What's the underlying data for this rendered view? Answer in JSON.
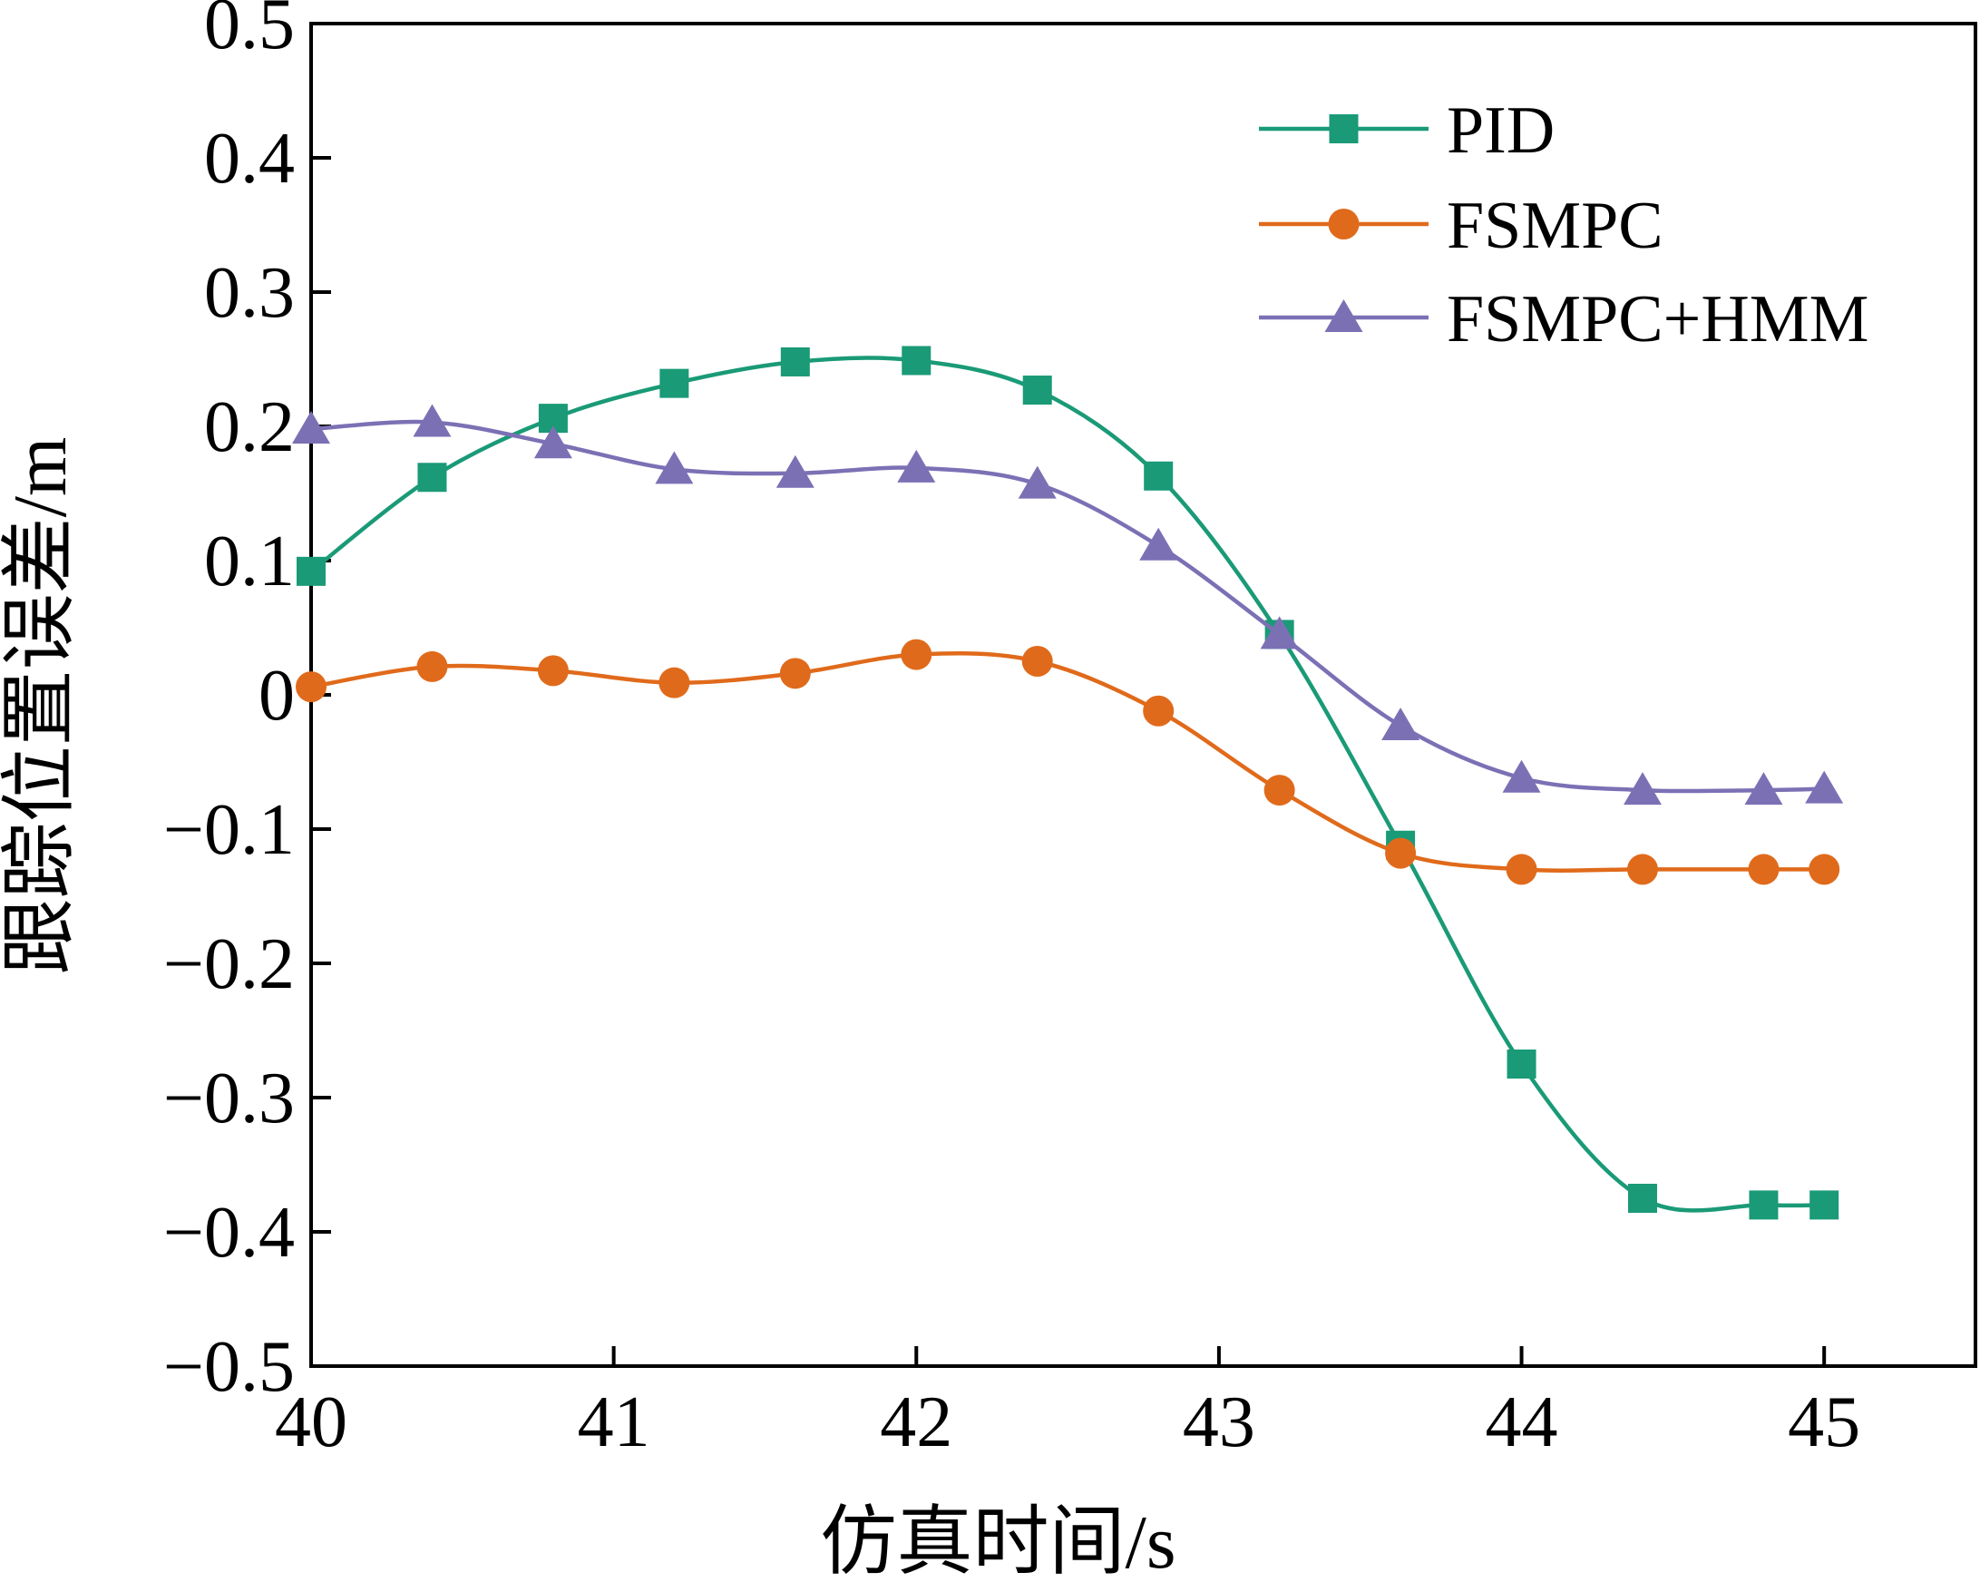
{
  "chart_data": {
    "type": "line",
    "title": "",
    "xlabel": "仿真时间/s",
    "ylabel": "跟踪位置误差/m",
    "xlim": [
      40,
      45.5
    ],
    "ylim": [
      -0.5,
      0.5
    ],
    "xticks": [
      40,
      41,
      42,
      43,
      44,
      45
    ],
    "xtick_labels": [
      "40",
      "41",
      "42",
      "43",
      "44",
      "45"
    ],
    "yticks": [
      -0.5,
      -0.4,
      -0.3,
      -0.2,
      -0.1,
      0,
      0.1,
      0.2,
      0.3,
      0.4,
      0.5
    ],
    "ytick_labels": [
      "−0.5",
      "−0.4",
      "−0.3",
      "−0.2",
      "−0.1",
      "0",
      "0.1",
      "0.2",
      "0.3",
      "0.4",
      "0.5"
    ],
    "grid": false,
    "legend_position": "top-right",
    "x": [
      40,
      40.4,
      40.8,
      41.2,
      41.6,
      42,
      42.4,
      42.8,
      43.2,
      43.6,
      44,
      44.4,
      44.8,
      45
    ],
    "series": [
      {
        "name": "PID",
        "color": "#1a9a77",
        "marker": "square",
        "values": [
          0.092,
          0.162,
          0.206,
          0.232,
          0.248,
          0.249,
          0.227,
          0.163,
          0.045,
          -0.112,
          -0.275,
          -0.375,
          -0.38,
          -0.38
        ]
      },
      {
        "name": "FSMPC",
        "color": "#e06a1b",
        "marker": "circle",
        "values": [
          0.006,
          0.021,
          0.018,
          0.009,
          0.016,
          0.03,
          0.025,
          -0.012,
          -0.071,
          -0.118,
          -0.13,
          -0.13,
          -0.13,
          -0.13
        ]
      },
      {
        "name": "FSMPC+HMM",
        "color": "#7c70b5",
        "marker": "triangle",
        "values": [
          0.198,
          0.203,
          0.187,
          0.168,
          0.165,
          0.169,
          0.157,
          0.111,
          0.045,
          -0.023,
          -0.062,
          -0.071,
          -0.071,
          -0.07
        ]
      }
    ]
  }
}
